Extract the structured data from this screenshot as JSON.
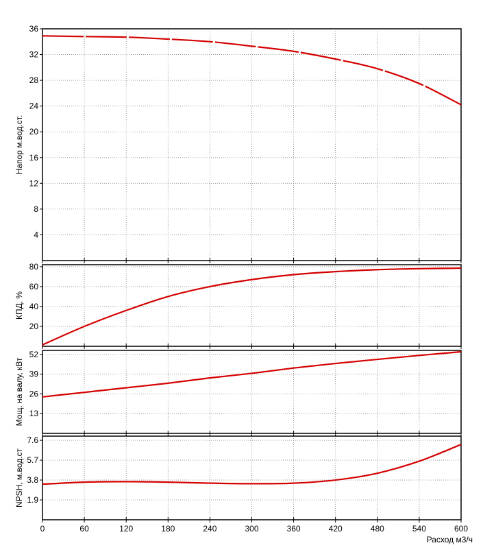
{
  "chart_data": [
    {
      "type": "line",
      "y_label": "Напор м.вод.ст.",
      "x": [
        0,
        60,
        120,
        180,
        240,
        300,
        360,
        420,
        480,
        540,
        600
      ],
      "series": [
        {
          "color": "#d40000",
          "dashed": true,
          "values": [
            34.9,
            34.8,
            34.7,
            34.4,
            34.0,
            33.3,
            32.5,
            31.3,
            29.8,
            27.5,
            24.2
          ]
        }
      ],
      "xlim": [
        0,
        600
      ],
      "xticks": [
        0,
        60,
        120,
        180,
        240,
        300,
        360,
        420,
        480,
        540,
        600
      ],
      "ylim": [
        0,
        36
      ],
      "yticks": [
        4,
        8,
        12,
        16,
        20,
        24,
        28,
        32,
        36
      ],
      "grid": true
    },
    {
      "type": "line",
      "y_label": "КПД, %",
      "x": [
        0,
        60,
        120,
        180,
        240,
        300,
        360,
        420,
        480,
        540,
        600
      ],
      "series": [
        {
          "color": "#d40000",
          "values": [
            1.5,
            20,
            36,
            50,
            60,
            67,
            72,
            75,
            77,
            78,
            78.5
          ]
        }
      ],
      "xlim": [
        0,
        600
      ],
      "xticks": [
        0,
        60,
        120,
        180,
        240,
        300,
        360,
        420,
        480,
        540,
        600
      ],
      "ylim": [
        0,
        82
      ],
      "yticks": [
        20,
        40,
        60,
        80
      ],
      "grid": true
    },
    {
      "type": "line",
      "y_label": "Мощ. на валу, кВт",
      "x": [
        0,
        60,
        120,
        180,
        240,
        300,
        360,
        420,
        480,
        540,
        600
      ],
      "series": [
        {
          "color": "#d40000",
          "values": [
            24,
            27,
            30,
            33,
            36.5,
            39.5,
            43,
            46,
            48.7,
            51.3,
            53.7
          ]
        }
      ],
      "xlim": [
        0,
        600
      ],
      "xticks": [
        0,
        60,
        120,
        180,
        240,
        300,
        360,
        420,
        480,
        540,
        600
      ],
      "ylim": [
        0,
        54.6
      ],
      "yticks": [
        13,
        26,
        39,
        52
      ],
      "grid": true
    },
    {
      "type": "line",
      "y_label": "NPSH, м.вод.ст",
      "x_label": "Расход м3/ч",
      "x": [
        0,
        60,
        120,
        180,
        240,
        300,
        360,
        420,
        480,
        540,
        600
      ],
      "series": [
        {
          "color": "#d40000",
          "values": [
            3.4,
            3.6,
            3.65,
            3.6,
            3.5,
            3.45,
            3.5,
            3.8,
            4.45,
            5.6,
            7.2
          ]
        }
      ],
      "xlim": [
        0,
        600
      ],
      "xticks": [
        0,
        60,
        120,
        180,
        240,
        300,
        360,
        420,
        480,
        540,
        600
      ],
      "ylim": [
        0,
        8
      ],
      "yticks": [
        1.9,
        3.8,
        5.7,
        7.6
      ],
      "grid": true,
      "x_tick_labels": true
    }
  ]
}
